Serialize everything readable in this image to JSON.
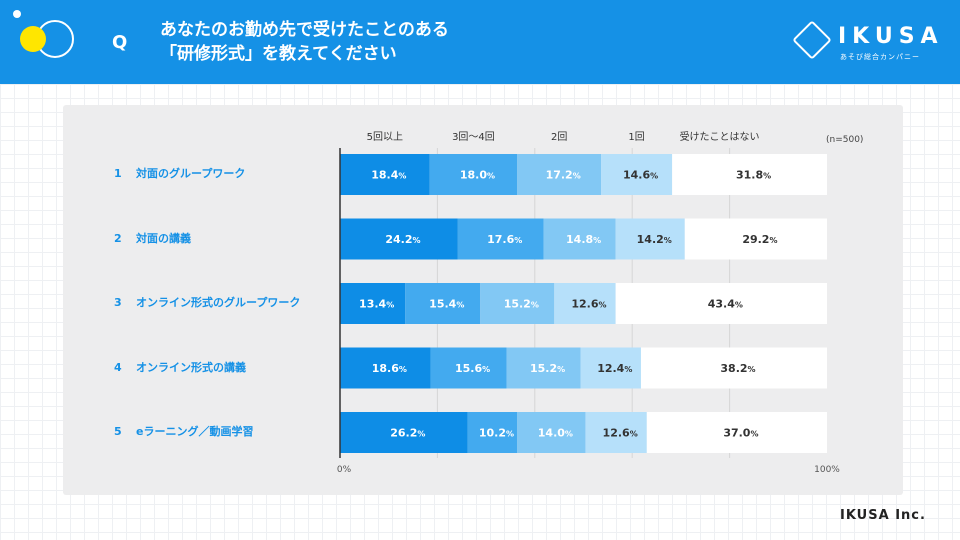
{
  "header": {
    "q_label": "Q",
    "question_line1": "あなたのお勤め先で受けたことのある",
    "question_line2": "「研修形式」を教えてください",
    "logo_text": "IKUSA",
    "logo_subtext": "あそび総合カンパニー"
  },
  "footer": {
    "brand": "IKUSA Inc."
  },
  "colors": {
    "header_bg": "#1591e6",
    "series": [
      "#0e8de6",
      "#43aaef",
      "#82c8f4",
      "#b6e0fa",
      "#ffffff"
    ],
    "label_color": "#1591e6"
  },
  "chart_data": {
    "type": "bar",
    "orientation": "horizontal",
    "stacked": true,
    "note": "(n=500)",
    "categories": [
      {
        "num": "1",
        "name": "対面のグループワーク"
      },
      {
        "num": "2",
        "name": "対面の講義"
      },
      {
        "num": "3",
        "name": "オンライン形式のグループワーク"
      },
      {
        "num": "4",
        "name": "オンライン形式の講義"
      },
      {
        "num": "5",
        "name": "eラーニング／動画学習"
      }
    ],
    "series": [
      {
        "name": "5回以上",
        "values": [
          18.4,
          24.2,
          13.4,
          18.6,
          26.2
        ]
      },
      {
        "name": "3回〜4回",
        "values": [
          18.0,
          17.6,
          15.4,
          15.6,
          10.2
        ]
      },
      {
        "name": "2回",
        "values": [
          17.2,
          14.8,
          15.2,
          15.2,
          14.0
        ]
      },
      {
        "name": "1回",
        "values": [
          14.6,
          14.2,
          12.6,
          12.4,
          12.6
        ]
      },
      {
        "name": "受けたことはない",
        "values": [
          31.8,
          29.2,
          43.4,
          38.2,
          37.0
        ]
      }
    ],
    "xlim": [
      0,
      100
    ],
    "x_tick_labels": [
      "0%",
      "100%"
    ],
    "value_suffix": "%",
    "grid": true
  }
}
